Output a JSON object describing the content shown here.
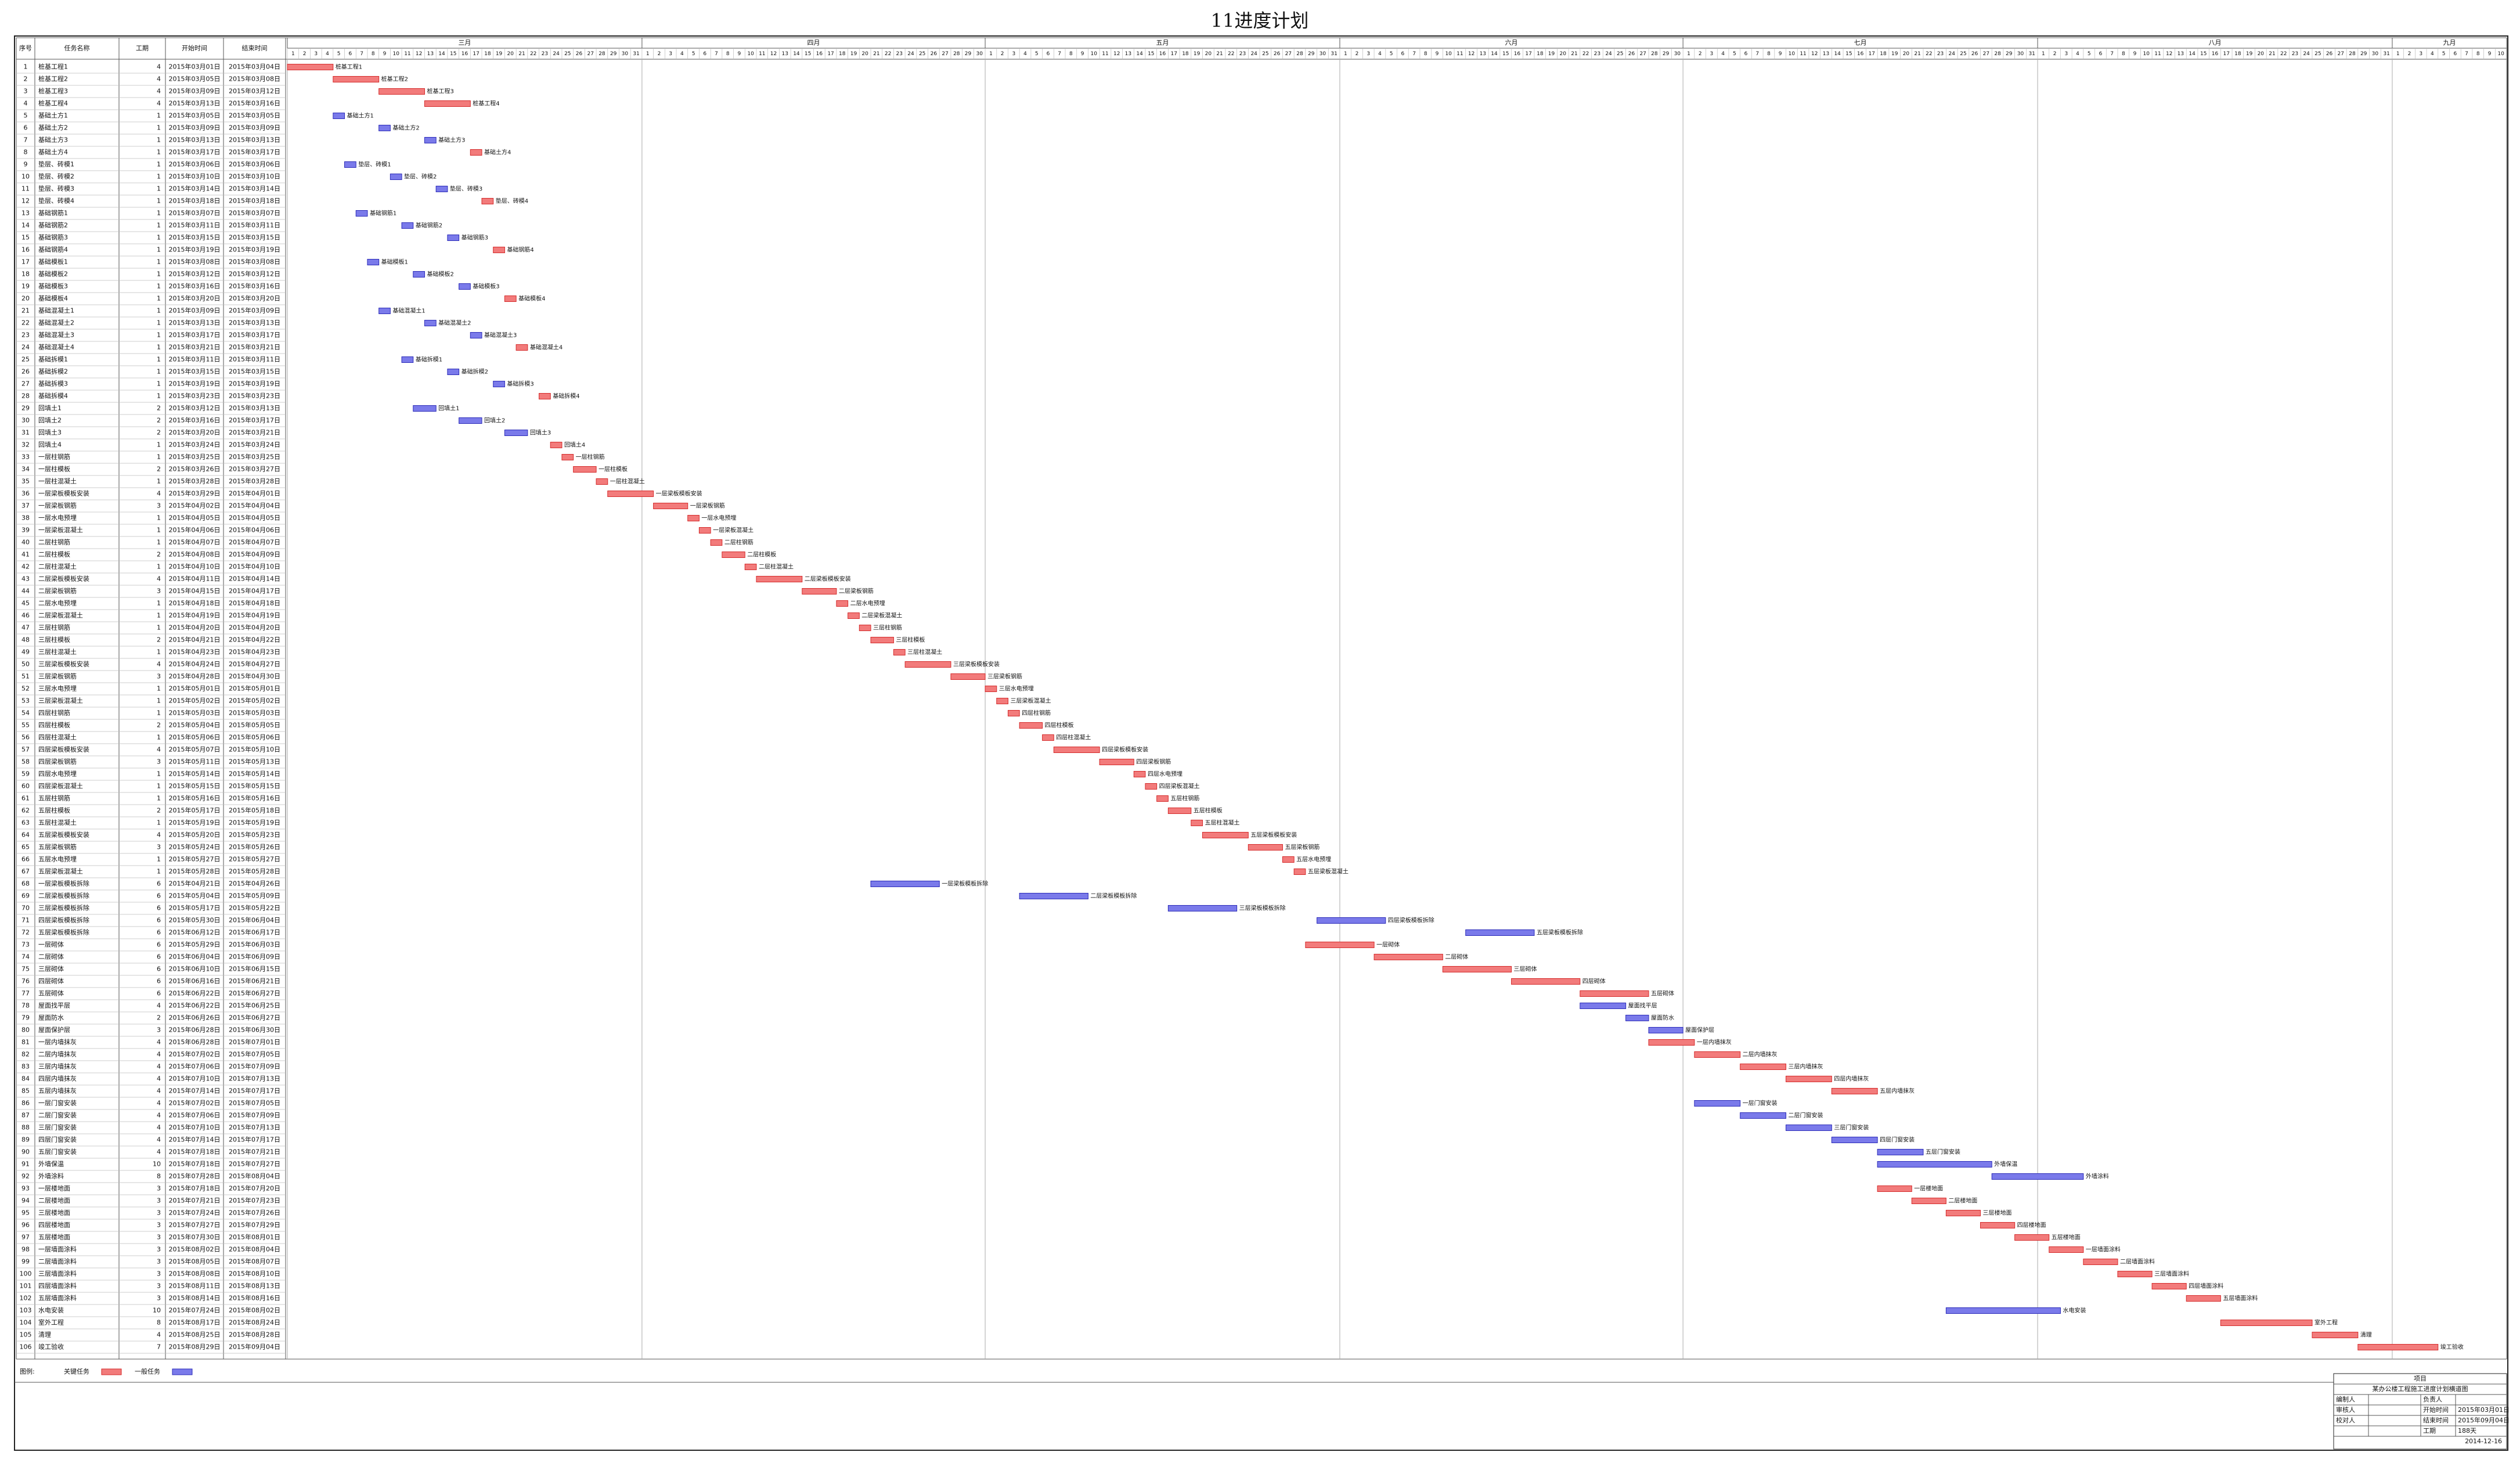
{
  "title": "11进度计划",
  "table": {
    "headers": [
      "序号",
      "任务名称",
      "工期",
      "开始时间",
      "结束时间"
    ]
  },
  "timeline": {
    "months": [
      {
        "name": "三月",
        "days": [
          1,
          2,
          3,
          4,
          5,
          6,
          7,
          8,
          9,
          10,
          11,
          12,
          13,
          14,
          15,
          16,
          17,
          18,
          19,
          20,
          21,
          22,
          23,
          24,
          25,
          26,
          27,
          28,
          29,
          30,
          31
        ]
      },
      {
        "name": "四月",
        "days": [
          1,
          2,
          3,
          4,
          5,
          6,
          7,
          8,
          9,
          10,
          11,
          12,
          13,
          14,
          15,
          16,
          17,
          18,
          19,
          20,
          21,
          22,
          23,
          24,
          25,
          26,
          27,
          28,
          29,
          30
        ]
      },
      {
        "name": "五月",
        "days": [
          1,
          2,
          3,
          4,
          5,
          6,
          7,
          8,
          9,
          10,
          11,
          12,
          13,
          14,
          15,
          16,
          17,
          18,
          19,
          20,
          21,
          22,
          23,
          24,
          25,
          26,
          27,
          28,
          29,
          30,
          31
        ]
      },
      {
        "name": "六月",
        "days": [
          1,
          2,
          3,
          4,
          5,
          6,
          7,
          8,
          9,
          10,
          11,
          12,
          13,
          14,
          15,
          16,
          17,
          18,
          19,
          20,
          21,
          22,
          23,
          24,
          25,
          26,
          27,
          28,
          29,
          30
        ]
      },
      {
        "name": "七月",
        "days": [
          1,
          2,
          3,
          4,
          5,
          6,
          7,
          8,
          9,
          10,
          11,
          12,
          13,
          14,
          15,
          16,
          17,
          18,
          19,
          20,
          21,
          22,
          23,
          24,
          25,
          26,
          27,
          28,
          29,
          30,
          31
        ]
      },
      {
        "name": "八月",
        "days": [
          1,
          2,
          3,
          4,
          5,
          6,
          7,
          8,
          9,
          10,
          11,
          12,
          13,
          14,
          15,
          16,
          17,
          18,
          19,
          20,
          21,
          22,
          23,
          24,
          25,
          26,
          27,
          28,
          29,
          30,
          31
        ]
      },
      {
        "name": "九月",
        "days": [
          1,
          2,
          3,
          4,
          5,
          6,
          7,
          8,
          9,
          10
        ]
      }
    ]
  },
  "colors": {
    "critical": "#f27b7b",
    "critical_edge": "#d42a2a",
    "normal": "#7a7aea",
    "normal_edge": "#2b2bb8"
  },
  "tasks": [
    [
      1,
      "桩基工程1",
      4,
      "2015年03月01日",
      "2015年03月04日",
      true
    ],
    [
      2,
      "桩基工程2",
      4,
      "2015年03月05日",
      "2015年03月08日",
      true
    ],
    [
      3,
      "桩基工程3",
      4,
      "2015年03月09日",
      "2015年03月12日",
      true
    ],
    [
      4,
      "桩基工程4",
      4,
      "2015年03月13日",
      "2015年03月16日",
      true
    ],
    [
      5,
      "基础土方1",
      1,
      "2015年03月05日",
      "2015年03月05日",
      false
    ],
    [
      6,
      "基础土方2",
      1,
      "2015年03月09日",
      "2015年03月09日",
      false
    ],
    [
      7,
      "基础土方3",
      1,
      "2015年03月13日",
      "2015年03月13日",
      false
    ],
    [
      8,
      "基础土方4",
      1,
      "2015年03月17日",
      "2015年03月17日",
      true
    ],
    [
      9,
      "垫层、砖模1",
      1,
      "2015年03月06日",
      "2015年03月06日",
      false
    ],
    [
      10,
      "垫层、砖模2",
      1,
      "2015年03月10日",
      "2015年03月10日",
      false
    ],
    [
      11,
      "垫层、砖模3",
      1,
      "2015年03月14日",
      "2015年03月14日",
      false
    ],
    [
      12,
      "垫层、砖模4",
      1,
      "2015年03月18日",
      "2015年03月18日",
      true
    ],
    [
      13,
      "基础钢筋1",
      1,
      "2015年03月07日",
      "2015年03月07日",
      false
    ],
    [
      14,
      "基础钢筋2",
      1,
      "2015年03月11日",
      "2015年03月11日",
      false
    ],
    [
      15,
      "基础钢筋3",
      1,
      "2015年03月15日",
      "2015年03月15日",
      false
    ],
    [
      16,
      "基础钢筋4",
      1,
      "2015年03月19日",
      "2015年03月19日",
      true
    ],
    [
      17,
      "基础模板1",
      1,
      "2015年03月08日",
      "2015年03月08日",
      false
    ],
    [
      18,
      "基础模板2",
      1,
      "2015年03月12日",
      "2015年03月12日",
      false
    ],
    [
      19,
      "基础模板3",
      1,
      "2015年03月16日",
      "2015年03月16日",
      false
    ],
    [
      20,
      "基础模板4",
      1,
      "2015年03月20日",
      "2015年03月20日",
      true
    ],
    [
      21,
      "基础混凝土1",
      1,
      "2015年03月09日",
      "2015年03月09日",
      false
    ],
    [
      22,
      "基础混凝土2",
      1,
      "2015年03月13日",
      "2015年03月13日",
      false
    ],
    [
      23,
      "基础混凝土3",
      1,
      "2015年03月17日",
      "2015年03月17日",
      false
    ],
    [
      24,
      "基础混凝土4",
      1,
      "2015年03月21日",
      "2015年03月21日",
      true
    ],
    [
      25,
      "基础拆模1",
      1,
      "2015年03月11日",
      "2015年03月11日",
      false
    ],
    [
      26,
      "基础拆模2",
      1,
      "2015年03月15日",
      "2015年03月15日",
      false
    ],
    [
      27,
      "基础拆模3",
      1,
      "2015年03月19日",
      "2015年03月19日",
      false
    ],
    [
      28,
      "基础拆模4",
      1,
      "2015年03月23日",
      "2015年03月23日",
      true
    ],
    [
      29,
      "回填土1",
      2,
      "2015年03月12日",
      "2015年03月13日",
      false
    ],
    [
      30,
      "回填土2",
      2,
      "2015年03月16日",
      "2015年03月17日",
      false
    ],
    [
      31,
      "回填土3",
      2,
      "2015年03月20日",
      "2015年03月21日",
      false
    ],
    [
      32,
      "回填土4",
      1,
      "2015年03月24日",
      "2015年03月24日",
      true
    ],
    [
      33,
      "一层柱钢筋",
      1,
      "2015年03月25日",
      "2015年03月25日",
      true
    ],
    [
      34,
      "一层柱模板",
      2,
      "2015年03月26日",
      "2015年03月27日",
      true
    ],
    [
      35,
      "一层柱混凝土",
      1,
      "2015年03月28日",
      "2015年03月28日",
      true
    ],
    [
      36,
      "一层梁板模板安装",
      4,
      "2015年03月29日",
      "2015年04月01日",
      true
    ],
    [
      37,
      "一层梁板钢筋",
      3,
      "2015年04月02日",
      "2015年04月04日",
      true
    ],
    [
      38,
      "一层水电预埋",
      1,
      "2015年04月05日",
      "2015年04月05日",
      true
    ],
    [
      39,
      "一层梁板混凝土",
      1,
      "2015年04月06日",
      "2015年04月06日",
      true
    ],
    [
      40,
      "二层柱钢筋",
      1,
      "2015年04月07日",
      "2015年04月07日",
      true
    ],
    [
      41,
      "二层柱模板",
      2,
      "2015年04月08日",
      "2015年04月09日",
      true
    ],
    [
      42,
      "二层柱混凝土",
      1,
      "2015年04月10日",
      "2015年04月10日",
      true
    ],
    [
      43,
      "二层梁板模板安装",
      4,
      "2015年04月11日",
      "2015年04月14日",
      true
    ],
    [
      44,
      "二层梁板钢筋",
      3,
      "2015年04月15日",
      "2015年04月17日",
      true
    ],
    [
      45,
      "二层水电预埋",
      1,
      "2015年04月18日",
      "2015年04月18日",
      true
    ],
    [
      46,
      "二层梁板混凝土",
      1,
      "2015年04月19日",
      "2015年04月19日",
      true
    ],
    [
      47,
      "三层柱钢筋",
      1,
      "2015年04月20日",
      "2015年04月20日",
      true
    ],
    [
      48,
      "三层柱模板",
      2,
      "2015年04月21日",
      "2015年04月22日",
      true
    ],
    [
      49,
      "三层柱混凝土",
      1,
      "2015年04月23日",
      "2015年04月23日",
      true
    ],
    [
      50,
      "三层梁板模板安装",
      4,
      "2015年04月24日",
      "2015年04月27日",
      true
    ],
    [
      51,
      "三层梁板钢筋",
      3,
      "2015年04月28日",
      "2015年04月30日",
      true
    ],
    [
      52,
      "三层水电预埋",
      1,
      "2015年05月01日",
      "2015年05月01日",
      true
    ],
    [
      53,
      "三层梁板混凝土",
      1,
      "2015年05月02日",
      "2015年05月02日",
      true
    ],
    [
      54,
      "四层柱钢筋",
      1,
      "2015年05月03日",
      "2015年05月03日",
      true
    ],
    [
      55,
      "四层柱模板",
      2,
      "2015年05月04日",
      "2015年05月05日",
      true
    ],
    [
      56,
      "四层柱混凝土",
      1,
      "2015年05月06日",
      "2015年05月06日",
      true
    ],
    [
      57,
      "四层梁板模板安装",
      4,
      "2015年05月07日",
      "2015年05月10日",
      true
    ],
    [
      58,
      "四层梁板钢筋",
      3,
      "2015年05月11日",
      "2015年05月13日",
      true
    ],
    [
      59,
      "四层水电预埋",
      1,
      "2015年05月14日",
      "2015年05月14日",
      true
    ],
    [
      60,
      "四层梁板混凝土",
      1,
      "2015年05月15日",
      "2015年05月15日",
      true
    ],
    [
      61,
      "五层柱钢筋",
      1,
      "2015年05月16日",
      "2015年05月16日",
      true
    ],
    [
      62,
      "五层柱模板",
      2,
      "2015年05月17日",
      "2015年05月18日",
      true
    ],
    [
      63,
      "五层柱混凝土",
      1,
      "2015年05月19日",
      "2015年05月19日",
      true
    ],
    [
      64,
      "五层梁板模板安装",
      4,
      "2015年05月20日",
      "2015年05月23日",
      true
    ],
    [
      65,
      "五层梁板钢筋",
      3,
      "2015年05月24日",
      "2015年05月26日",
      true
    ],
    [
      66,
      "五层水电预埋",
      1,
      "2015年05月27日",
      "2015年05月27日",
      true
    ],
    [
      67,
      "五层梁板混凝土",
      1,
      "2015年05月28日",
      "2015年05月28日",
      true
    ],
    [
      68,
      "一层梁板模板拆除",
      6,
      "2015年04月21日",
      "2015年04月26日",
      false
    ],
    [
      69,
      "二层梁板模板拆除",
      6,
      "2015年05月04日",
      "2015年05月09日",
      false
    ],
    [
      70,
      "三层梁板模板拆除",
      6,
      "2015年05月17日",
      "2015年05月22日",
      false
    ],
    [
      71,
      "四层梁板模板拆除",
      6,
      "2015年05月30日",
      "2015年06月04日",
      false
    ],
    [
      72,
      "五层梁板模板拆除",
      6,
      "2015年06月12日",
      "2015年06月17日",
      false
    ],
    [
      73,
      "一层砌体",
      6,
      "2015年05月29日",
      "2015年06月03日",
      true
    ],
    [
      74,
      "二层砌体",
      6,
      "2015年06月04日",
      "2015年06月09日",
      true
    ],
    [
      75,
      "三层砌体",
      6,
      "2015年06月10日",
      "2015年06月15日",
      true
    ],
    [
      76,
      "四层砌体",
      6,
      "2015年06月16日",
      "2015年06月21日",
      true
    ],
    [
      77,
      "五层砌体",
      6,
      "2015年06月22日",
      "2015年06月27日",
      true
    ],
    [
      78,
      "屋面找平层",
      4,
      "2015年06月22日",
      "2015年06月25日",
      false
    ],
    [
      79,
      "屋面防水",
      2,
      "2015年06月26日",
      "2015年06月27日",
      false
    ],
    [
      80,
      "屋面保护层",
      3,
      "2015年06月28日",
      "2015年06月30日",
      false
    ],
    [
      81,
      "一层内墙抹灰",
      4,
      "2015年06月28日",
      "2015年07月01日",
      true
    ],
    [
      82,
      "二层内墙抹灰",
      4,
      "2015年07月02日",
      "2015年07月05日",
      true
    ],
    [
      83,
      "三层内墙抹灰",
      4,
      "2015年07月06日",
      "2015年07月09日",
      true
    ],
    [
      84,
      "四层内墙抹灰",
      4,
      "2015年07月10日",
      "2015年07月13日",
      true
    ],
    [
      85,
      "五层内墙抹灰",
      4,
      "2015年07月14日",
      "2015年07月17日",
      true
    ],
    [
      86,
      "一层门窗安装",
      4,
      "2015年07月02日",
      "2015年07月05日",
      false
    ],
    [
      87,
      "二层门窗安装",
      4,
      "2015年07月06日",
      "2015年07月09日",
      false
    ],
    [
      88,
      "三层门窗安装",
      4,
      "2015年07月10日",
      "2015年07月13日",
      false
    ],
    [
      89,
      "四层门窗安装",
      4,
      "2015年07月14日",
      "2015年07月17日",
      false
    ],
    [
      90,
      "五层门窗安装",
      4,
      "2015年07月18日",
      "2015年07月21日",
      false
    ],
    [
      91,
      "外墙保温",
      10,
      "2015年07月18日",
      "2015年07月27日",
      false
    ],
    [
      92,
      "外墙涂料",
      8,
      "2015年07月28日",
      "2015年08月04日",
      false
    ],
    [
      93,
      "一层楼地面",
      3,
      "2015年07月18日",
      "2015年07月20日",
      true
    ],
    [
      94,
      "二层楼地面",
      3,
      "2015年07月21日",
      "2015年07月23日",
      true
    ],
    [
      95,
      "三层楼地面",
      3,
      "2015年07月24日",
      "2015年07月26日",
      true
    ],
    [
      96,
      "四层楼地面",
      3,
      "2015年07月27日",
      "2015年07月29日",
      true
    ],
    [
      97,
      "五层楼地面",
      3,
      "2015年07月30日",
      "2015年08月01日",
      true
    ],
    [
      98,
      "一层墙面涂料",
      3,
      "2015年08月02日",
      "2015年08月04日",
      true
    ],
    [
      99,
      "二层墙面涂料",
      3,
      "2015年08月05日",
      "2015年08月07日",
      true
    ],
    [
      100,
      "三层墙面涂料",
      3,
      "2015年08月08日",
      "2015年08月10日",
      true
    ],
    [
      101,
      "四层墙面涂料",
      3,
      "2015年08月11日",
      "2015年08月13日",
      true
    ],
    [
      102,
      "五层墙面涂料",
      3,
      "2015年08月14日",
      "2015年08月16日",
      true
    ],
    [
      103,
      "水电安装",
      10,
      "2015年07月24日",
      "2015年08月02日",
      false
    ],
    [
      104,
      "室外工程",
      8,
      "2015年08月17日",
      "2015年08月24日",
      true
    ],
    [
      105,
      "清理",
      4,
      "2015年08月25日",
      "2015年08月28日",
      true
    ],
    [
      106,
      "竣工验收",
      7,
      "2015年08月29日",
      "2015年09月04日",
      true
    ]
  ],
  "legend": {
    "label": "图例:",
    "critical": "关键任务",
    "normal": "一般任务"
  },
  "info": {
    "heading": "项目",
    "project": "某办公楼工程施工进度计划横道图",
    "rows": [
      [
        "编制人",
        "",
        "负责人",
        ""
      ],
      [
        "审核人",
        "",
        "开始时间",
        "2015年03月01日"
      ],
      [
        "校对人",
        "",
        "结束时间",
        "2015年09月04日"
      ],
      [
        "",
        "",
        "工期",
        "188天"
      ]
    ],
    "date": "2014-12-16"
  }
}
